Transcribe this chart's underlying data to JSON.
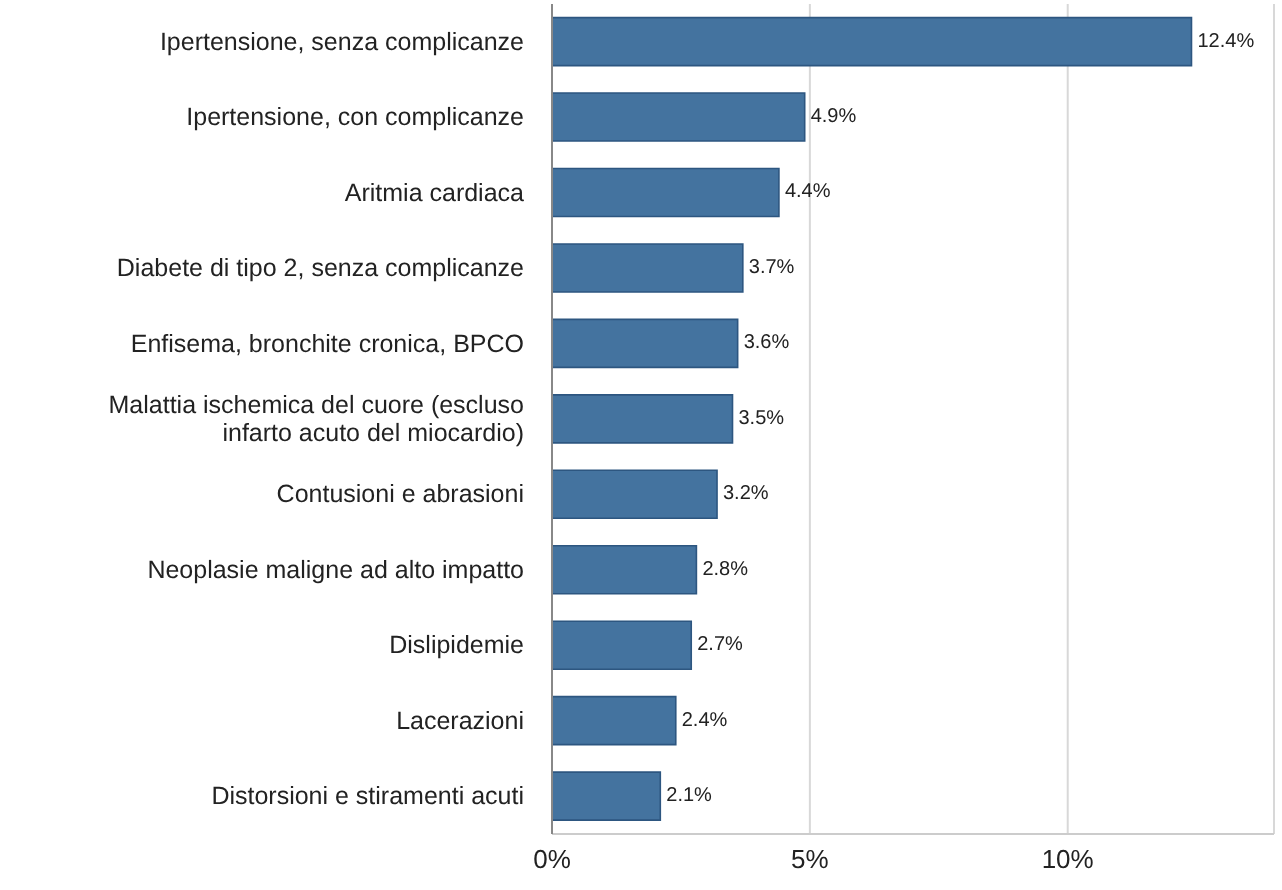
{
  "chart_data": {
    "type": "bar",
    "orientation": "horizontal",
    "categories": [
      "Ipertensione, senza complicanze",
      "Ipertensione, con complicanze",
      "Aritmia cardiaca",
      "Diabete di tipo 2, senza complicanze",
      "Enfisema, bronchite cronica, BPCO",
      "Malattia ischemica del cuore (escluso infarto acuto del miocardio)",
      "Contusioni e abrasioni",
      "Neoplasie maligne ad alto impatto",
      "Dislipidemie",
      "Lacerazioni",
      "Distorsioni e stiramenti acuti"
    ],
    "values": [
      12.4,
      4.9,
      4.4,
      3.7,
      3.6,
      3.5,
      3.2,
      2.8,
      2.7,
      2.4,
      2.1
    ],
    "value_labels": [
      "12.4%",
      "4.9%",
      "4.4%",
      "3.7%",
      "3.6%",
      "3.5%",
      "3.2%",
      "2.8%",
      "2.7%",
      "2.4%",
      "2.1%"
    ],
    "color": "#44739f",
    "xlim": [
      0,
      14
    ],
    "xticks": [
      {
        "value": 0,
        "label": "0%"
      },
      {
        "value": 5,
        "label": "5%"
      },
      {
        "value": 10,
        "label": "10%"
      }
    ],
    "grid": "x"
  }
}
